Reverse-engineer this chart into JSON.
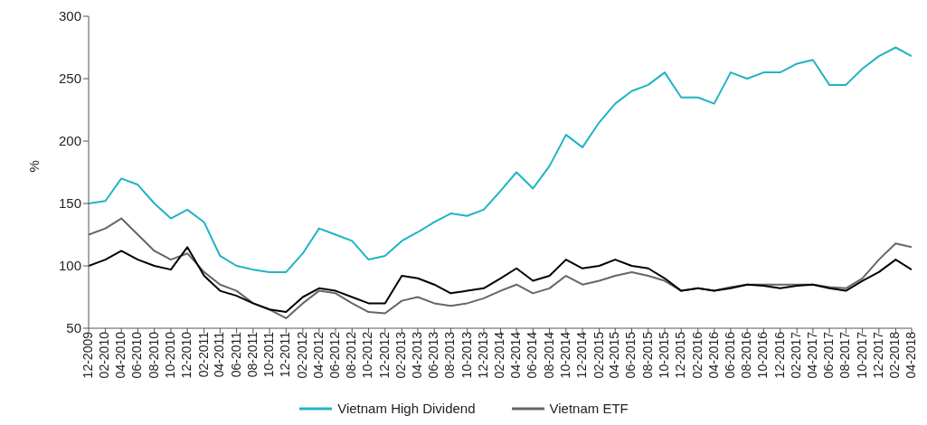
{
  "chart_data": {
    "type": "line",
    "ylabel": "%",
    "ylim": [
      50,
      300
    ],
    "yticks": [
      50,
      100,
      150,
      200,
      250,
      300
    ],
    "xlim": [
      "2009-12",
      "2018-04"
    ],
    "xticks": [
      {
        "value": "2009-12",
        "label": "12-2009"
      },
      {
        "value": "2010-02",
        "label": "02-2010"
      },
      {
        "value": "2010-04",
        "label": "04-2010"
      },
      {
        "value": "2010-06",
        "label": "06-2010"
      },
      {
        "value": "2010-08",
        "label": "08-2010"
      },
      {
        "value": "2010-10",
        "label": "10-2010"
      },
      {
        "value": "2010-12",
        "label": "12-2010"
      },
      {
        "value": "2011-02",
        "label": "02-2011"
      },
      {
        "value": "2011-04",
        "label": "04-2011"
      },
      {
        "value": "2011-06",
        "label": "06-2011"
      },
      {
        "value": "2011-08",
        "label": "08-2011"
      },
      {
        "value": "2011-10",
        "label": "10-2011"
      },
      {
        "value": "2011-12",
        "label": "12-2011"
      },
      {
        "value": "2012-02",
        "label": "02-2012"
      },
      {
        "value": "2012-04",
        "label": "04-2012"
      },
      {
        "value": "2012-06",
        "label": "06-2012"
      },
      {
        "value": "2012-08",
        "label": "08-2012"
      },
      {
        "value": "2012-10",
        "label": "10-2012"
      },
      {
        "value": "2012-12",
        "label": "12-2012"
      },
      {
        "value": "2013-02",
        "label": "02-2013"
      },
      {
        "value": "2013-04",
        "label": "04-2013"
      },
      {
        "value": "2013-06",
        "label": "06-2013"
      },
      {
        "value": "2013-08",
        "label": "08-2013"
      },
      {
        "value": "2013-10",
        "label": "10-2013"
      },
      {
        "value": "2013-12",
        "label": "12-2013"
      },
      {
        "value": "2014-02",
        "label": "02-2014"
      },
      {
        "value": "2014-04",
        "label": "04-2014"
      },
      {
        "value": "2014-06",
        "label": "06-2014"
      },
      {
        "value": "2014-08",
        "label": "08-2014"
      },
      {
        "value": "2014-10",
        "label": "10-2014"
      },
      {
        "value": "2014-12",
        "label": "12-2014"
      },
      {
        "value": "2015-02",
        "label": "02-2015"
      },
      {
        "value": "2015-04",
        "label": "04-2015"
      },
      {
        "value": "2015-06",
        "label": "06-2015"
      },
      {
        "value": "2015-08",
        "label": "08-2015"
      },
      {
        "value": "2015-10",
        "label": "10-2015"
      },
      {
        "value": "2015-12",
        "label": "12-2015"
      },
      {
        "value": "2016-02",
        "label": "02-2016"
      },
      {
        "value": "2016-04",
        "label": "04-2016"
      },
      {
        "value": "2016-06",
        "label": "06-2016"
      },
      {
        "value": "2016-08",
        "label": "08-2016"
      },
      {
        "value": "2016-10",
        "label": "10-2016"
      },
      {
        "value": "2016-12",
        "label": "12-2016"
      },
      {
        "value": "2017-02",
        "label": "02-2017"
      },
      {
        "value": "2017-04",
        "label": "04-2017"
      },
      {
        "value": "2017-06",
        "label": "06-2017"
      },
      {
        "value": "2017-08",
        "label": "08-2017"
      },
      {
        "value": "2017-10",
        "label": "10-2017"
      },
      {
        "value": "2017-12",
        "label": "12-2017"
      },
      {
        "value": "2018-02",
        "label": "02-2018"
      },
      {
        "value": "2018-04",
        "label": "04-2018"
      }
    ],
    "x": [
      "2009-12",
      "2010-02",
      "2010-04",
      "2010-06",
      "2010-08",
      "2010-10",
      "2010-12",
      "2011-02",
      "2011-04",
      "2011-06",
      "2011-08",
      "2011-10",
      "2011-12",
      "2012-02",
      "2012-04",
      "2012-06",
      "2012-08",
      "2012-10",
      "2012-12",
      "2013-02",
      "2013-04",
      "2013-06",
      "2013-08",
      "2013-10",
      "2013-12",
      "2014-02",
      "2014-04",
      "2014-06",
      "2014-08",
      "2014-10",
      "2014-12",
      "2015-02",
      "2015-04",
      "2015-06",
      "2015-08",
      "2015-10",
      "2015-12",
      "2016-02",
      "2016-04",
      "2016-06",
      "2016-08",
      "2016-10",
      "2016-12",
      "2017-02",
      "2017-04",
      "2017-06",
      "2017-08",
      "2017-10",
      "2017-12",
      "2018-02",
      "2018-04"
    ],
    "series": [
      {
        "name": "Vietnam High Dividend",
        "color": "#1fb3c4",
        "values": [
          150,
          152,
          170,
          165,
          150,
          138,
          145,
          135,
          108,
          100,
          97,
          95,
          95,
          110,
          130,
          125,
          120,
          105,
          108,
          120,
          127,
          135,
          142,
          140,
          145,
          160,
          175,
          162,
          180,
          205,
          195,
          215,
          230,
          240,
          245,
          255,
          235,
          235,
          230,
          255,
          250,
          255,
          255,
          262,
          265,
          245,
          245,
          258,
          268,
          275,
          268
        ]
      },
      {
        "name": "Vietnam ETF",
        "color": "#666666",
        "values": [
          125,
          130,
          138,
          125,
          112,
          105,
          110,
          95,
          85,
          80,
          70,
          65,
          58,
          70,
          80,
          78,
          70,
          63,
          62,
          72,
          75,
          70,
          68,
          70,
          74,
          80,
          85,
          78,
          82,
          92,
          85,
          88,
          92,
          95,
          92,
          88,
          80,
          82,
          80,
          83,
          85,
          85,
          85,
          85,
          85,
          83,
          82,
          90,
          105,
          118,
          115
        ]
      },
      {
        "color": "#000000",
        "values": [
          100,
          105,
          112,
          105,
          100,
          97,
          115,
          92,
          80,
          76,
          70,
          65,
          63,
          75,
          82,
          80,
          75,
          70,
          70,
          92,
          90,
          85,
          78,
          80,
          82,
          90,
          98,
          88,
          92,
          105,
          98,
          100,
          105,
          100,
          98,
          90,
          80,
          82,
          80,
          82,
          85,
          84,
          82,
          84,
          85,
          82,
          80,
          88,
          95,
          105,
          97
        ]
      }
    ],
    "legend": "bottom",
    "grid": false,
    "marker": "none",
    "line_style": "solid"
  }
}
